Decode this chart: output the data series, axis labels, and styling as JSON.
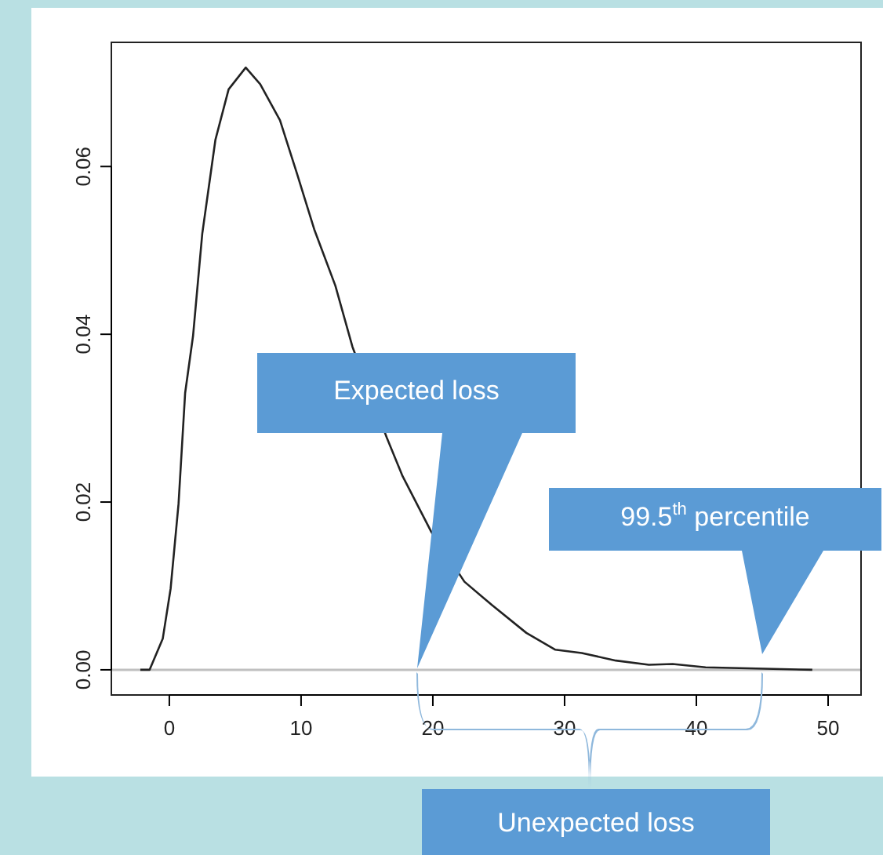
{
  "chart_data": {
    "type": "line",
    "x": [
      -2.2,
      -1.5,
      -0.5,
      0.1,
      0.7,
      1.2,
      1.8,
      2.5,
      3.5,
      4.5,
      5.8,
      6.9,
      8.4,
      9.7,
      11.0,
      12.6,
      13.9,
      16.5,
      17.7,
      19.9,
      22.4,
      24.5,
      27.1,
      29.3,
      31.3,
      33.9,
      36.4,
      38.2,
      40.7,
      48.8
    ],
    "values": [
      0,
      0,
      0.0037,
      0.0097,
      0.0198,
      0.033,
      0.0398,
      0.052,
      0.0632,
      0.0692,
      0.0718,
      0.0698,
      0.0655,
      0.0591,
      0.0525,
      0.0458,
      0.0385,
      0.0277,
      0.0231,
      0.0164,
      0.0105,
      0.0077,
      0.0044,
      0.0024,
      0.002,
      0.0011,
      0.0006,
      0.0007,
      0.0003,
      0
    ],
    "color": "#222222",
    "line_style": "solid",
    "xlim": [
      -4.4,
      52.5
    ],
    "ylim": [
      -0.003,
      0.0748
    ],
    "xticks": [
      0,
      10,
      20,
      30,
      40,
      50
    ],
    "yticks": [
      {
        "value": 0,
        "label": "0.00"
      },
      {
        "value": 0.02,
        "label": "0.02"
      },
      {
        "value": 0.04,
        "label": "0.04"
      },
      {
        "value": 0.06,
        "label": "0.06"
      }
    ],
    "ref_lines": [
      {
        "axis": "y",
        "value": 0,
        "color": "#c0c0c0"
      }
    ],
    "annotations": [
      "Expected loss",
      "99.5$^{th}$ percentile",
      "Unexpected loss"
    ]
  }
}
